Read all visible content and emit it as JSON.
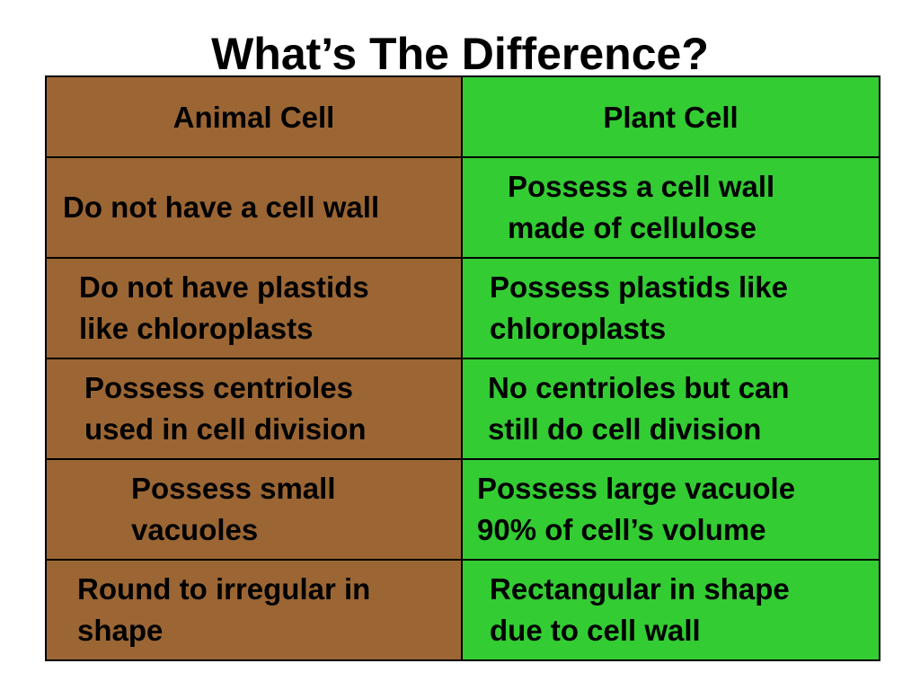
{
  "title": "What’s The Difference?",
  "headers": {
    "animal": "Animal Cell",
    "plant": "Plant Cell"
  },
  "rows": [
    {
      "animal": "Do not have a cell wall",
      "plant": "Possess a cell wall\nmade of cellulose"
    },
    {
      "animal": "Do not have plastids\nlike chloroplasts",
      "plant": "Possess plastids like\nchloroplasts"
    },
    {
      "animal": "Possess centrioles\nused in cell division",
      "plant": "No centrioles but can\nstill do cell division"
    },
    {
      "animal": "Possess small\nvacuoles",
      "plant": "Possess large vacuole\n90% of cell’s volume"
    },
    {
      "animal": "Round to irregular in\nshape",
      "plant": "Rectangular in shape\ndue to cell wall"
    }
  ],
  "colors": {
    "animal_column": "#9b6634",
    "plant_column": "#33cc33"
  }
}
